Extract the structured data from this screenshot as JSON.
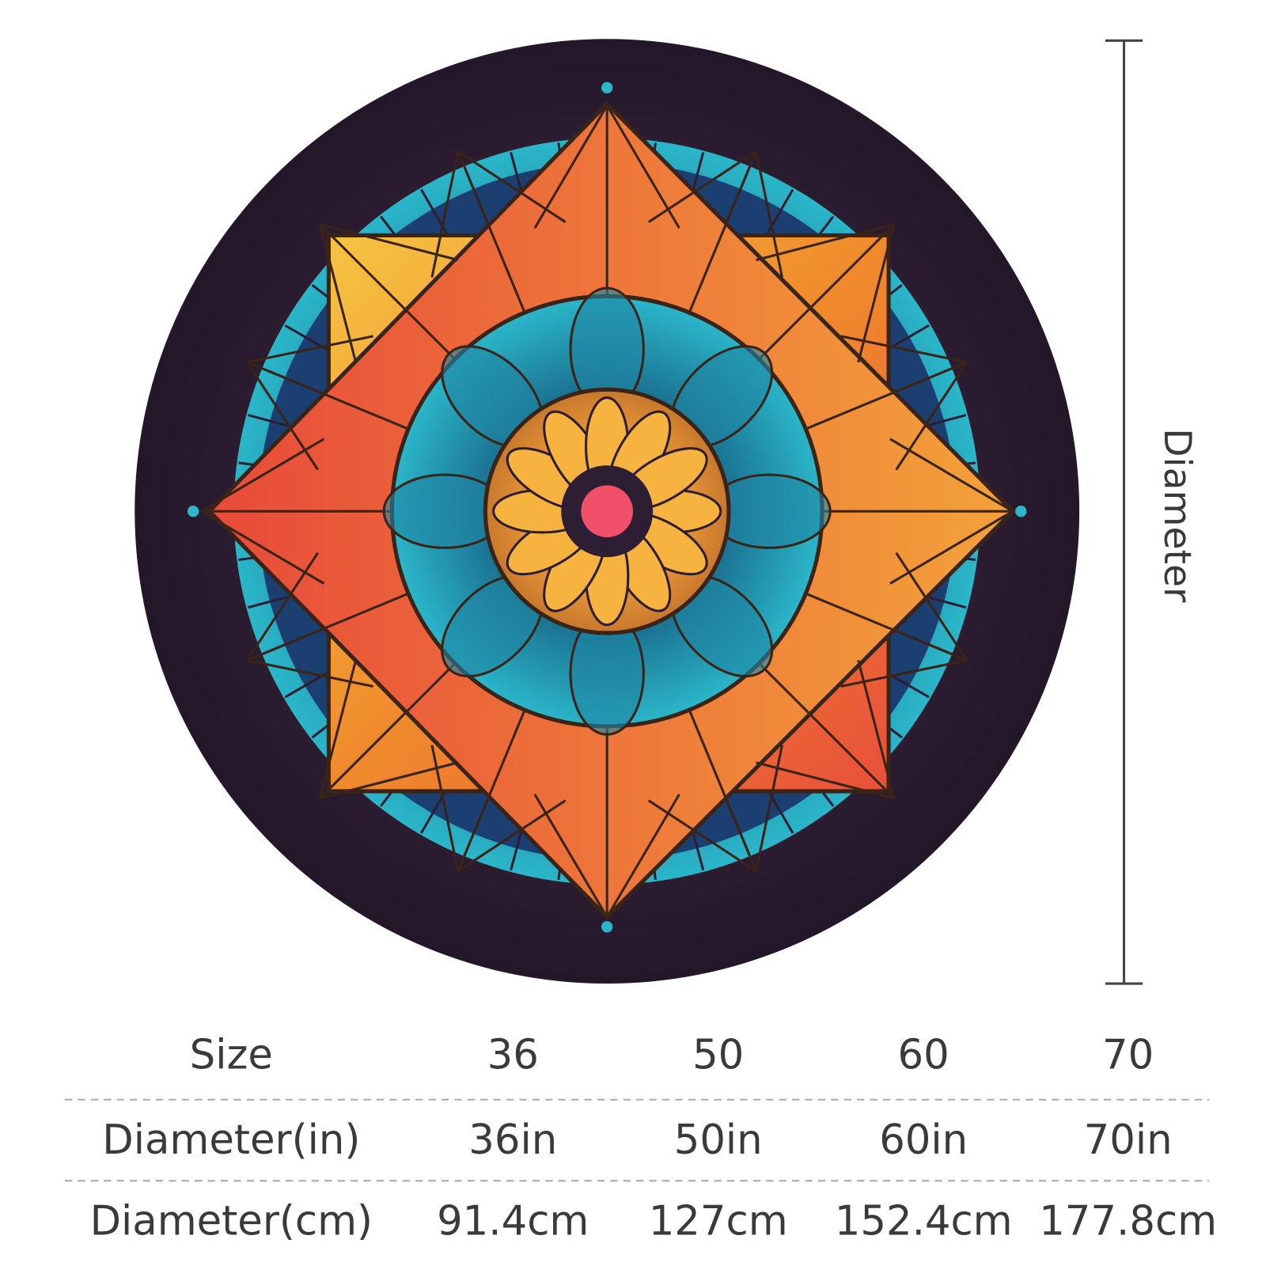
{
  "dimension": {
    "label": "Diameter"
  },
  "table": {
    "rows": [
      [
        "Size",
        "36",
        "50",
        "60",
        "70"
      ],
      [
        "Diameter(in)",
        "36in",
        "50in",
        "60in",
        "70in"
      ],
      [
        "Diameter(cm)",
        "91.4cm",
        "127cm",
        "152.4cm",
        "177.8cm"
      ]
    ]
  }
}
